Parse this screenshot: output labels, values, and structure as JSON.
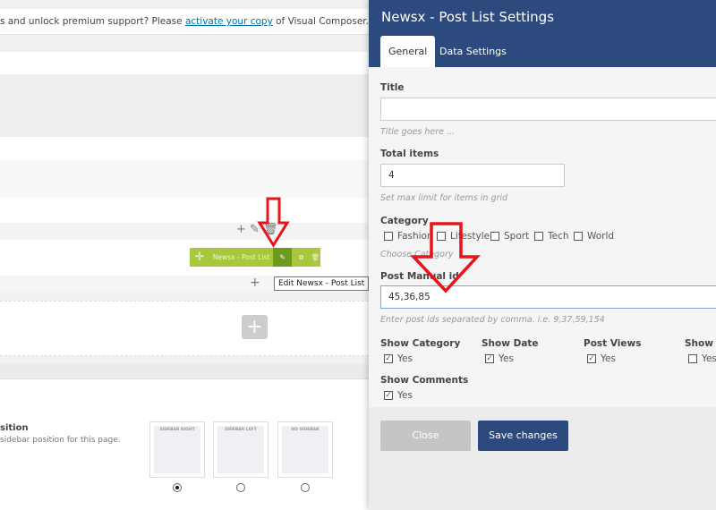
{
  "notice": {
    "before": "s and unlock premium support? Please ",
    "link": "activate your copy",
    "after": " of Visual Composer."
  },
  "element_bar": {
    "label": "Newsx - Post List",
    "tooltip": "Edit Newsx - Post List"
  },
  "sidebar_section": {
    "title": "sition",
    "desc": "sidebar position for this page.",
    "options": [
      {
        "label": "SIDEBAR RIGHT",
        "selected": true
      },
      {
        "label": "SIDEBAR LEFT",
        "selected": false
      },
      {
        "label": "NO SIDEBAR",
        "selected": false
      }
    ]
  },
  "panel": {
    "title": "Newsx - Post List Settings",
    "tabs": [
      {
        "label": "General",
        "active": true
      },
      {
        "label": "Data Settings",
        "active": false
      }
    ],
    "fields": {
      "title": {
        "label": "Title",
        "value": "",
        "help": "Title goes here ..."
      },
      "total": {
        "label": "Total items",
        "value": "4",
        "help": "Set max limit for items in grid"
      },
      "category": {
        "label": "Category",
        "options": [
          {
            "label": "Fashion",
            "checked": false
          },
          {
            "label": "Lifestyle",
            "checked": false
          },
          {
            "label": "Sport",
            "checked": false
          },
          {
            "label": "Tech",
            "checked": false
          },
          {
            "label": "World",
            "checked": false
          }
        ],
        "help": "Choose Category"
      },
      "manual": {
        "label": "Post Manual id",
        "value": "45,36,85",
        "help": "Enter post ids separated by comma. i.e. 9,37,59,154"
      },
      "toggles": [
        {
          "label": "Show Category",
          "option": "Yes",
          "checked": true
        },
        {
          "label": "Show Date",
          "option": "Yes",
          "checked": true
        },
        {
          "label": "Post Views",
          "option": "Yes",
          "checked": true
        },
        {
          "label": "Show A",
          "option": "Yes",
          "checked": false
        },
        {
          "label": "Show Comments",
          "option": "Yes",
          "checked": true
        }
      ]
    },
    "close": "Close",
    "save": "Save changes"
  },
  "colors": {
    "header": "#2d4a7e",
    "element_green": "#a7c83c",
    "save": "#2d4a7e",
    "annotation": "#e8141c"
  }
}
